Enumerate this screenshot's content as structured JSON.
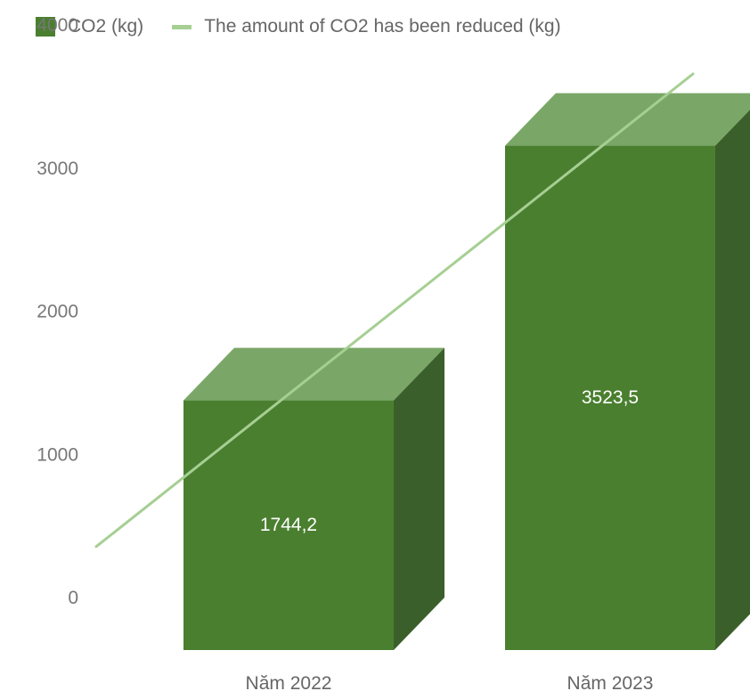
{
  "chart_data": {
    "type": "bar",
    "categories": [
      "Năm 2022",
      "Năm 2023"
    ],
    "series": [
      {
        "name": "CO2 (kg)",
        "type": "bar",
        "values": [
          1744.2,
          3523.5
        ],
        "data_labels": [
          "1744,2",
          "3523,5"
        ],
        "color": "#4a7f2f"
      },
      {
        "name": "The amount of CO2 has been reduced (kg)",
        "type": "line",
        "values": [
          1744.2,
          3523.5
        ],
        "color": "#a6cf93"
      }
    ],
    "y_ticks": [
      "0",
      "1000",
      "2000",
      "3000",
      "4000"
    ],
    "ylim": [
      0,
      4000
    ],
    "legend": "top-left",
    "three_d": true,
    "grid": false
  }
}
